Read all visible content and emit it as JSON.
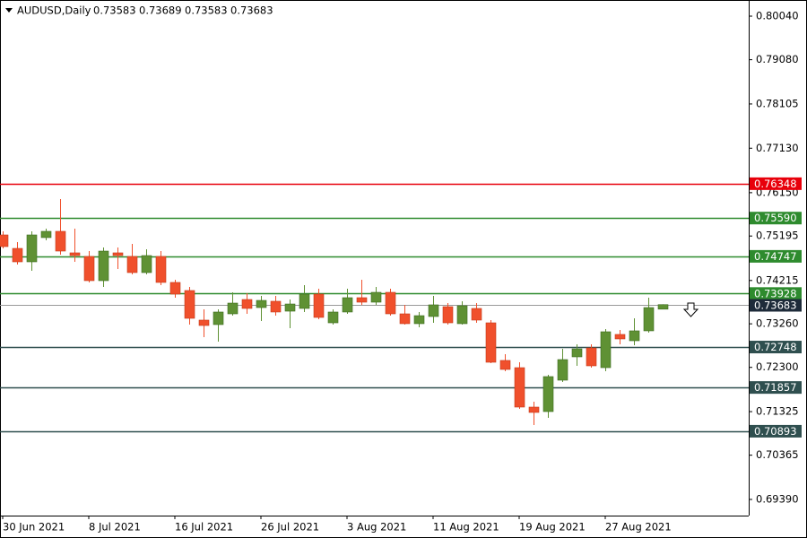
{
  "chart_data": {
    "type": "candlestick",
    "title": "AUDUSD,Daily",
    "categories": [
      "30 Jun 2021",
      null,
      null,
      null,
      null,
      null,
      "8 Jul 2021",
      null,
      null,
      null,
      null,
      null,
      "16 Jul 2021",
      null,
      null,
      null,
      null,
      null,
      "26 Jul 2021",
      null,
      null,
      null,
      null,
      null,
      "3 Aug 2021",
      null,
      null,
      null,
      null,
      null,
      "11 Aug 2021",
      null,
      null,
      null,
      null,
      null,
      "19 Aug 2021",
      null,
      null,
      null,
      null,
      null,
      "27 Aug 2021",
      null,
      null,
      null,
      null
    ],
    "open": [
      0.75219,
      0.74922,
      0.74626,
      0.7516,
      0.75298,
      0.74824,
      0.74745,
      0.74211,
      0.74824,
      0.74745,
      0.74389,
      0.74745,
      0.74172,
      0.73994,
      0.73342,
      0.73243,
      0.7348,
      0.73796,
      0.73618,
      0.73757,
      0.73539,
      0.73599,
      0.73915,
      0.73282,
      0.7352,
      0.73836,
      0.73737,
      0.73954,
      0.7348,
      0.73263,
      0.73421,
      0.73638,
      0.73263,
      0.73599,
      0.73282,
      0.72453,
      0.72294,
      0.71425,
      0.71326,
      0.72018,
      0.72532,
      0.72729,
      0.72294,
      0.73026,
      0.72887,
      0.73105,
      0.73583
    ],
    "high": [
      0.75298,
      0.75061,
      0.75298,
      0.75357,
      0.76009,
      0.75357,
      0.74863,
      0.74942,
      0.74942,
      0.75021,
      0.74903,
      0.74863,
      0.74231,
      0.74073,
      0.73579,
      0.73579,
      0.73954,
      0.73934,
      0.73875,
      0.73875,
      0.73796,
      0.74112,
      0.74033,
      0.73579,
      0.74033,
      0.74231,
      0.74073,
      0.74033,
      0.73678,
      0.7352,
      0.73875,
      0.73717,
      0.73757,
      0.73717,
      0.73342,
      0.72591,
      0.72413,
      0.71544,
      0.72136,
      0.72709,
      0.72808,
      0.72808,
      0.73144,
      0.73124,
      0.73381,
      0.73836,
      0.73689
    ],
    "low": [
      0.74922,
      0.74567,
      0.74428,
      0.751,
      0.74784,
      0.74626,
      0.74172,
      0.74073,
      0.74468,
      0.74349,
      0.74349,
      0.74112,
      0.73836,
      0.73243,
      0.72966,
      0.72867,
      0.7344,
      0.7348,
      0.73322,
      0.7344,
      0.73164,
      0.7352,
      0.73361,
      0.73243,
      0.7348,
      0.73678,
      0.73678,
      0.7344,
      0.73243,
      0.73184,
      0.73282,
      0.73243,
      0.73243,
      0.73282,
      0.72393,
      0.72215,
      0.71386,
      0.7103,
      0.71188,
      0.71978,
      0.72334,
      0.72294,
      0.72215,
      0.72808,
      0.72788,
      0.73065,
      0.73583
    ],
    "close": [
      0.74962,
      0.74626,
      0.75219,
      0.75298,
      0.74863,
      0.74764,
      0.74211,
      0.74863,
      0.74764,
      0.74389,
      0.74764,
      0.74172,
      0.73915,
      0.73381,
      0.73223,
      0.7352,
      0.73717,
      0.73599,
      0.73776,
      0.7352,
      0.73697,
      0.73915,
      0.73401,
      0.7352,
      0.73836,
      0.73737,
      0.73954,
      0.7348,
      0.73263,
      0.7344,
      0.73678,
      0.73282,
      0.73658,
      0.73342,
      0.72413,
      0.72255,
      0.71425,
      0.71307,
      0.72097,
      0.72472,
      0.72709,
      0.72334,
      0.73085,
      0.72927,
      0.73105,
      0.73618,
      0.73683
    ],
    "up_color": "#5f9134",
    "down_color": "#f0502c",
    "ylim": [
      0.69034,
      0.80396
    ],
    "yticks": [
      {
        "value": 0.8004,
        "label": "0.80040"
      },
      {
        "value": 0.7908,
        "label": "0.79080"
      },
      0.78105,
      {
        "value": 0.7713,
        "label": "0.77130"
      },
      {
        "value": 0.7615,
        "label": "0.76150"
      },
      0.75195,
      0.74215,
      {
        "value": 0.7326,
        "label": "0.73260"
      },
      {
        "value": 0.723,
        "label": "0.72300"
      },
      0.71325,
      0.70365,
      {
        "value": 0.6939,
        "label": "0.69390"
      }
    ],
    "levels": {
      "values": [
        0.76348,
        0.7559,
        0.74747,
        0.73928,
        0.72748,
        0.71857,
        0.70893
      ],
      "value_labels": [
        "0.76348",
        "0.75590",
        "0.74747",
        "0.73928",
        "0.72748",
        "0.71857",
        "0.70893"
      ],
      "colors": [
        "#e8000b",
        "#2e8b2e",
        "#2e8b2e",
        "#2e8b2e",
        "#2f4f4f",
        "#2f4f4f",
        "#2f4f4f"
      ]
    },
    "last_price_color": "#999999"
  }
}
